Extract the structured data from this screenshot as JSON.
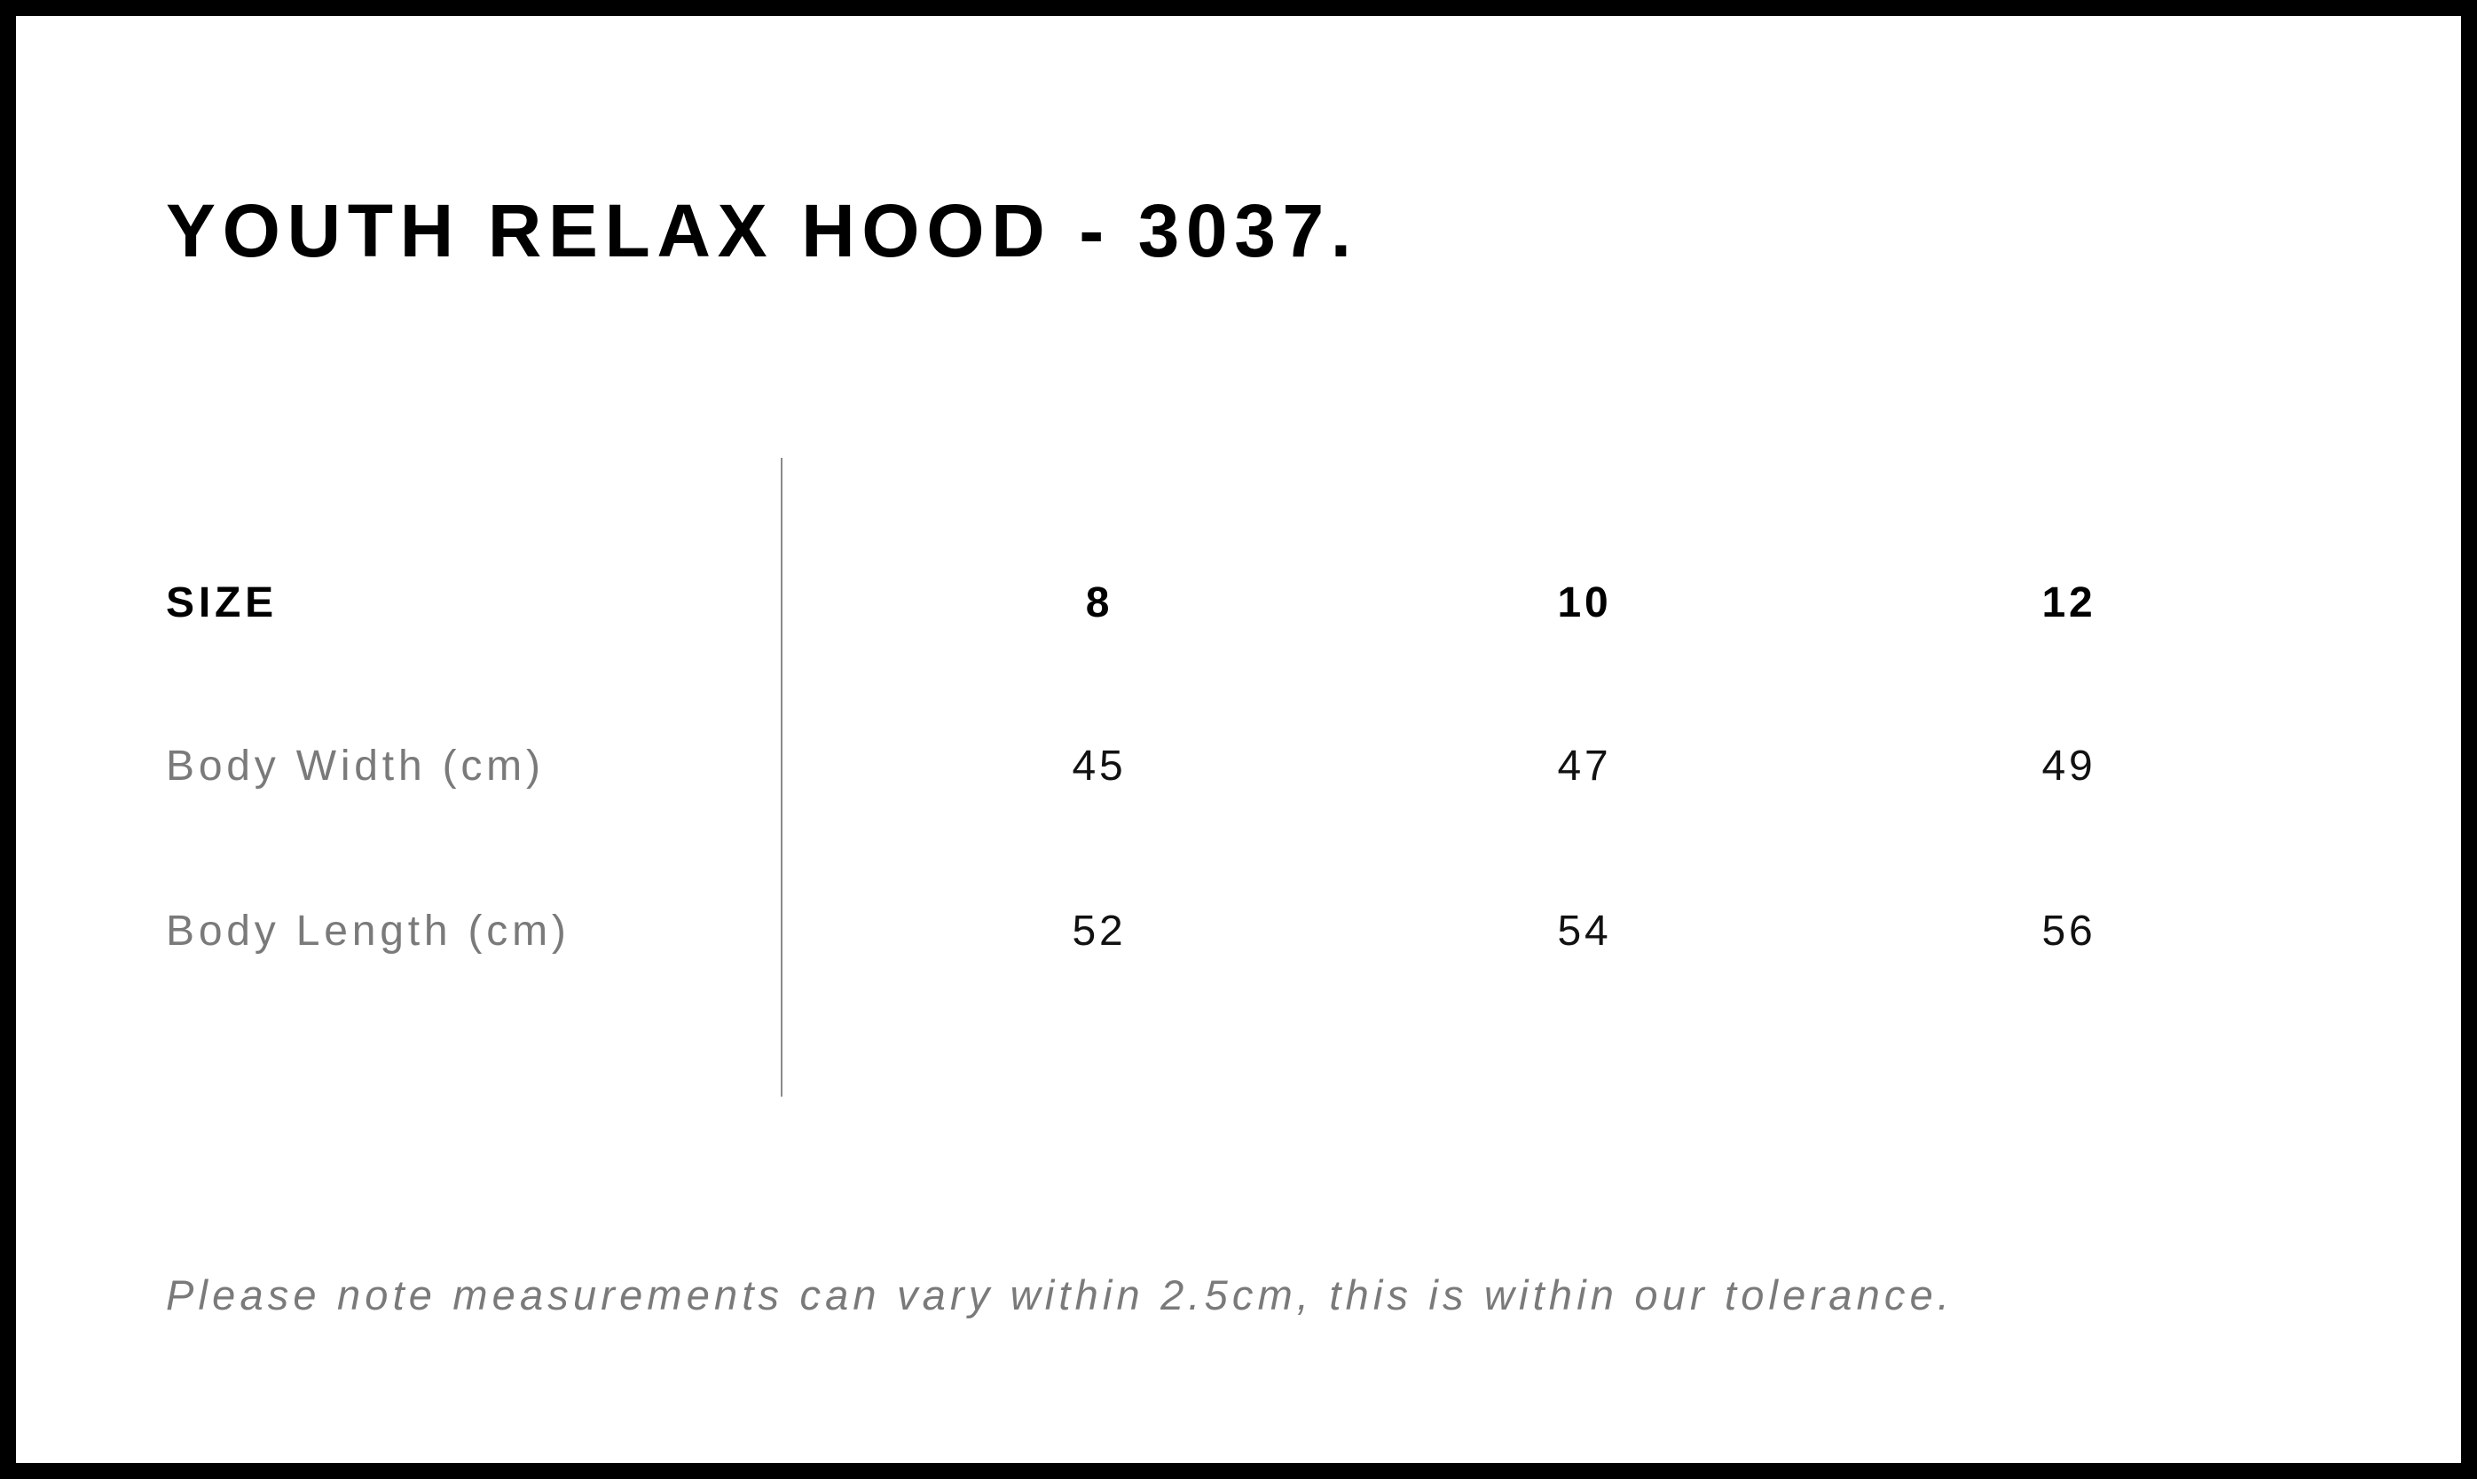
{
  "title": "YOUTH RELAX HOOD - 3037.",
  "table": {
    "header": {
      "label": "SIZE",
      "values": [
        "8",
        "10",
        "12"
      ]
    },
    "rows": [
      {
        "label": "Body Width (cm)",
        "values": [
          "45",
          "47",
          "49"
        ]
      },
      {
        "label": "Body Length (cm)",
        "values": [
          "52",
          "54",
          "56"
        ]
      }
    ]
  },
  "note": "Please note measurements can vary within 2.5cm, this is within our tolerance."
}
